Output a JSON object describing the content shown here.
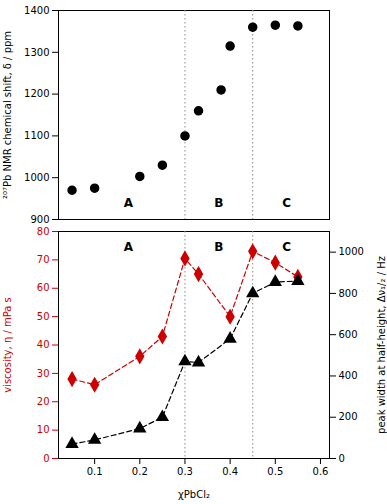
{
  "chart_data": [
    {
      "type": "scatter",
      "x": [
        0.05,
        0.1,
        0.2,
        0.25,
        0.3,
        0.33,
        0.38,
        0.4,
        0.45,
        0.5,
        0.55
      ],
      "values": [
        970,
        975,
        1003,
        1030,
        1100,
        1160,
        1210,
        1315,
        1360,
        1365,
        1363
      ],
      "color": "black",
      "marker": "circle",
      "ylabel": "²⁰⁷Pb NMR chemical shift, δ / ppm",
      "xlim": [
        0.02,
        0.62
      ],
      "ylim": [
        900,
        1400
      ],
      "yticks": [
        900,
        1000,
        1100,
        1200,
        1300,
        1400
      ],
      "tick_labels": "y",
      "grid": false,
      "annotations": [
        {
          "text": "A",
          "x": 0.175,
          "y": 930
        },
        {
          "text": "B",
          "x": 0.375,
          "y": 930
        },
        {
          "text": "C",
          "x": 0.525,
          "y": 930
        }
      ],
      "vlines": [
        {
          "x": 0.3,
          "color": "#888888",
          "line_style": "dotted"
        },
        {
          "x": 0.45,
          "color": "#888888",
          "line_style": "dotted"
        }
      ]
    },
    {
      "type": "line",
      "x": [
        0.05,
        0.1,
        0.2,
        0.25,
        0.3,
        0.33,
        0.4,
        0.45,
        0.5,
        0.55
      ],
      "series": [
        {
          "color": "#cc0000",
          "marker": "diamond",
          "line_style": "dashed",
          "values": [
            28.0,
            26.0,
            36.0,
            43.0,
            70.5,
            65.0,
            50.0,
            73.0,
            69.0,
            64.0
          ]
        },
        {
          "color": "black",
          "marker": "triangle",
          "line_style": "dashed",
          "axis": "y2",
          "values": [
            70,
            90,
            145,
            200,
            470,
            465,
            580,
            800,
            855,
            860
          ]
        }
      ],
      "xlabel": "χPbCl₂",
      "ylabel": "viscosity, η / mPa s",
      "y2label": "peak width at half-height, Δν₁/₂ / Hz",
      "xlim": [
        0.02,
        0.62
      ],
      "xticks": [
        0.1,
        0.2,
        0.3,
        0.4,
        0.5,
        0.6
      ],
      "ylim": [
        0,
        80
      ],
      "yticks": [
        0,
        10,
        20,
        30,
        40,
        50,
        60,
        70,
        80
      ],
      "y2lim": [
        0,
        1100
      ],
      "y2ticks": [
        0,
        200,
        400,
        600,
        800,
        1000
      ],
      "grid": false,
      "annotations": [
        {
          "text": "A",
          "x": 0.175,
          "y": 76
        },
        {
          "text": "B",
          "x": 0.375,
          "y": 76
        },
        {
          "text": "C",
          "x": 0.525,
          "y": 76
        }
      ],
      "vlines": [
        {
          "x": 0.3,
          "color": "#888888",
          "line_style": "dotted"
        },
        {
          "x": 0.45,
          "color": "#888888",
          "line_style": "dotted"
        }
      ]
    }
  ]
}
